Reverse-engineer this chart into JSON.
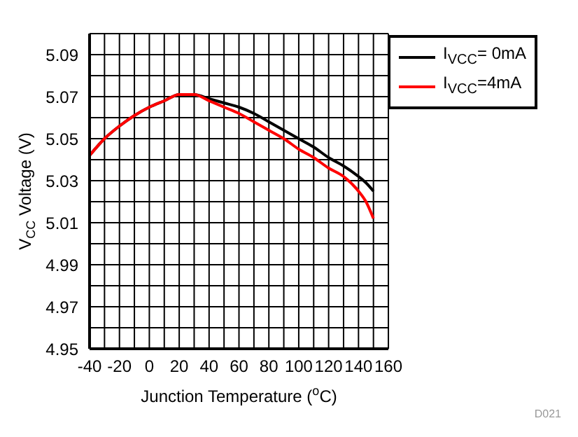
{
  "chart_data": {
    "type": "line",
    "xlabel": "Junction Temperature ($^{o}$C)",
    "ylabel": "V$_{CC}$ Voltage (V)",
    "annotations": [
      "D021"
    ],
    "x": [
      -40,
      -30,
      -20,
      -10,
      0,
      10,
      20,
      30,
      40,
      50,
      60,
      70,
      80,
      90,
      100,
      110,
      120,
      130,
      140,
      145,
      150
    ],
    "series": [
      {
        "name": "I$_{VCC}$= 0mA",
        "color": "#000000",
        "values": [
          5.042,
          5.05,
          5.056,
          5.061,
          5.065,
          5.068,
          5.071,
          5.071,
          5.069,
          5.067,
          5.065,
          5.062,
          5.058,
          5.054,
          5.05,
          5.046,
          5.041,
          5.037,
          5.032,
          5.029,
          5.025
        ]
      },
      {
        "name": "I$_{VCC}$=4mA",
        "color": "#ff0000",
        "values": [
          5.042,
          5.05,
          5.056,
          5.061,
          5.065,
          5.068,
          5.071,
          5.071,
          5.068,
          5.065,
          5.062,
          5.058,
          5.054,
          5.05,
          5.045,
          5.041,
          5.036,
          5.032,
          5.025,
          5.02,
          5.012
        ]
      }
    ],
    "xlim": [
      -40,
      160
    ],
    "ylim": [
      4.95,
      5.1
    ],
    "xticks": [
      -40,
      {
        "value": -30,
        "label": null
      },
      -20,
      {
        "value": -10,
        "label": null
      },
      0,
      {
        "value": 10,
        "label": null
      },
      20,
      {
        "value": 30,
        "label": null
      },
      40,
      {
        "value": 50,
        "label": null
      },
      60,
      {
        "value": 70,
        "label": null
      },
      80,
      {
        "value": 90,
        "label": null
      },
      100,
      {
        "value": 110,
        "label": null
      },
      120,
      {
        "value": 130,
        "label": null
      },
      140,
      {
        "value": 150,
        "label": null
      },
      160
    ],
    "yticks": [
      {
        "value": 4.95,
        "label": "4.95"
      },
      {
        "value": 4.96,
        "label": null
      },
      {
        "value": 4.97,
        "label": "4.97"
      },
      {
        "value": 4.98,
        "label": null
      },
      {
        "value": 4.99,
        "label": "4.99"
      },
      {
        "value": 5.0,
        "label": null
      },
      {
        "value": 5.01,
        "label": "5.01"
      },
      {
        "value": 5.02,
        "label": null
      },
      {
        "value": 5.03,
        "label": "5.03"
      },
      {
        "value": 5.04,
        "label": null
      },
      {
        "value": 5.05,
        "label": "5.05"
      },
      {
        "value": 5.06,
        "label": null
      },
      {
        "value": 5.07,
        "label": "5.07"
      },
      {
        "value": 5.08,
        "label": null
      },
      {
        "value": 5.09,
        "label": "5.09"
      },
      {
        "value": 5.1,
        "label": null
      }
    ],
    "grid": true,
    "legend": "top right",
    "marker": "none",
    "line_style": "solid"
  }
}
